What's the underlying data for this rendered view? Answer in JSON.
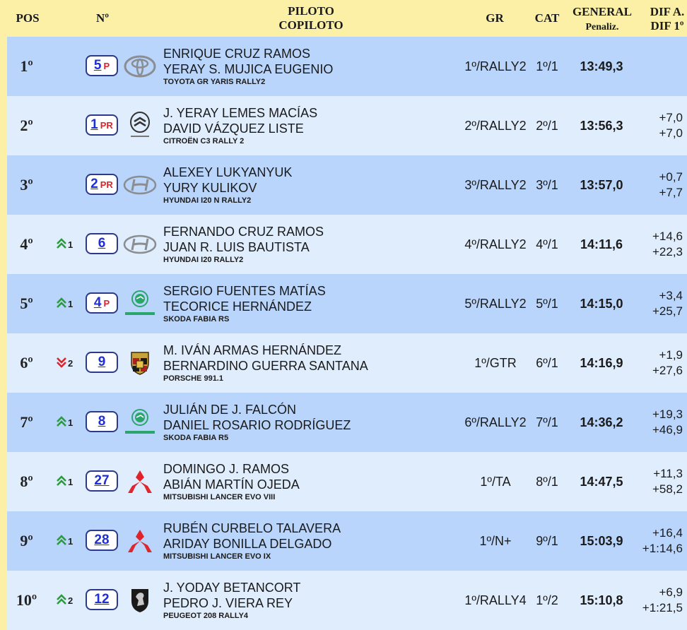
{
  "header": {
    "pos": "POS",
    "num": "Nº",
    "piloto": "PILOTO",
    "copiloto": "COPILOTO",
    "gr": "GR",
    "cat": "CAT",
    "general": "GENERAL",
    "penaliz": "Penaliz.",
    "dif_a": "DIF A.",
    "dif_1": "DIF 1º"
  },
  "colors": {
    "header_bg": "#fbf0a6",
    "row_dark": "#b9d5fb",
    "row_light": "#e0edfd",
    "num_border": "#2b3a8c",
    "num_text": "#1f2fd6",
    "tag_red": "#e0232a",
    "up_green": "#2e9a40",
    "down_red": "#e0232a"
  },
  "rows": [
    {
      "pos": "1º",
      "change_dir": "",
      "change": "",
      "num": "5",
      "tag": "P",
      "brand_icon": "toyota-logo-icon",
      "pilot": "ENRIQUE CRUZ RAMOS",
      "copilot": "YERAY S. MUJICA EUGENIO",
      "car": "TOYOTA GR YARIS RALLY2",
      "gr": "1º/RALLY2",
      "cat": "1º/1",
      "time": "13:49,3",
      "dif_a": "",
      "dif_1": ""
    },
    {
      "pos": "2º",
      "change_dir": "",
      "change": "",
      "num": "1",
      "tag": "PR",
      "brand_icon": "citroen-logo-icon",
      "pilot": "J. YERAY LEMES MACÍAS",
      "copilot": "DAVID VÁZQUEZ LISTE",
      "car": "CITROËN C3 RALLY 2",
      "gr": "2º/RALLY2",
      "cat": "2º/1",
      "time": "13:56,3",
      "dif_a": "+7,0",
      "dif_1": "+7,0"
    },
    {
      "pos": "3º",
      "change_dir": "",
      "change": "",
      "num": "2",
      "tag": "PR",
      "brand_icon": "hyundai-logo-icon",
      "pilot": "ALEXEY LUKYANYUK",
      "copilot": "YURY KULIKOV",
      "car": "HYUNDAI I20 N RALLY2",
      "gr": "3º/RALLY2",
      "cat": "3º/1",
      "time": "13:57,0",
      "dif_a": "+0,7",
      "dif_1": "+7,7"
    },
    {
      "pos": "4º",
      "change_dir": "up",
      "change": "1",
      "num": "6",
      "tag": "",
      "brand_icon": "hyundai-logo-icon",
      "pilot": "FERNANDO CRUZ RAMOS",
      "copilot": "JUAN R. LUIS BAUTISTA",
      "car": "HYUNDAI I20 RALLY2",
      "gr": "4º/RALLY2",
      "cat": "4º/1",
      "time": "14:11,6",
      "dif_a": "+14,6",
      "dif_1": "+22,3"
    },
    {
      "pos": "5º",
      "change_dir": "up",
      "change": "1",
      "num": "4",
      "tag": "P",
      "brand_icon": "skoda-logo-icon",
      "pilot": "SERGIO FUENTES MATÍAS",
      "copilot": "TECORICE HERNÁNDEZ",
      "car": "SKODA FABIA RS",
      "gr": "5º/RALLY2",
      "cat": "5º/1",
      "time": "14:15,0",
      "dif_a": "+3,4",
      "dif_1": "+25,7"
    },
    {
      "pos": "6º",
      "change_dir": "down",
      "change": "2",
      "num": "9",
      "tag": "",
      "brand_icon": "porsche-logo-icon",
      "pilot": "M. IVÁN ARMAS HERNÁNDEZ",
      "copilot": "BERNARDINO GUERRA SANTANA",
      "car": "PORSCHE 991.1",
      "gr": "1º/GTR",
      "cat": "6º/1",
      "time": "14:16,9",
      "dif_a": "+1,9",
      "dif_1": "+27,6"
    },
    {
      "pos": "7º",
      "change_dir": "up",
      "change": "1",
      "num": "8",
      "tag": "",
      "brand_icon": "skoda-logo-icon",
      "pilot": "JULIÁN DE J. FALCÓN",
      "copilot": "DANIEL ROSARIO RODRÍGUEZ",
      "car": "SKODA FABIA R5",
      "gr": "6º/RALLY2",
      "cat": "7º/1",
      "time": "14:36,2",
      "dif_a": "+19,3",
      "dif_1": "+46,9"
    },
    {
      "pos": "8º",
      "change_dir": "up",
      "change": "1",
      "num": "27",
      "tag": "",
      "brand_icon": "mitsubishi-logo-icon",
      "pilot": "DOMINGO J. RAMOS",
      "copilot": "ABIÁN MARTÍN OJEDA",
      "car": "MITSUBISHI LANCER EVO VIII",
      "gr": "1º/TA",
      "cat": "8º/1",
      "time": "14:47,5",
      "dif_a": "+11,3",
      "dif_1": "+58,2"
    },
    {
      "pos": "9º",
      "change_dir": "up",
      "change": "1",
      "num": "28",
      "tag": "",
      "brand_icon": "mitsubishi-logo-icon",
      "pilot": "RUBÉN CURBELO TALAVERA",
      "copilot": "ARIDAY BONILLA DELGADO",
      "car": "MITSUBISHI LANCER EVO IX",
      "gr": "1º/N+",
      "cat": "9º/1",
      "time": "15:03,9",
      "dif_a": "+16,4",
      "dif_1": "+1:14,6"
    },
    {
      "pos": "10º",
      "change_dir": "up",
      "change": "2",
      "num": "12",
      "tag": "",
      "brand_icon": "peugeot-logo-icon",
      "pilot": "J. YODAY BETANCORT",
      "copilot": "PEDRO J. VIERA REY",
      "car": "PEUGEOT 208 RALLY4",
      "gr": "1º/RALLY4",
      "cat": "1º/2",
      "time": "15:10,8",
      "dif_a": "+6,9",
      "dif_1": "+1:21,5"
    }
  ]
}
